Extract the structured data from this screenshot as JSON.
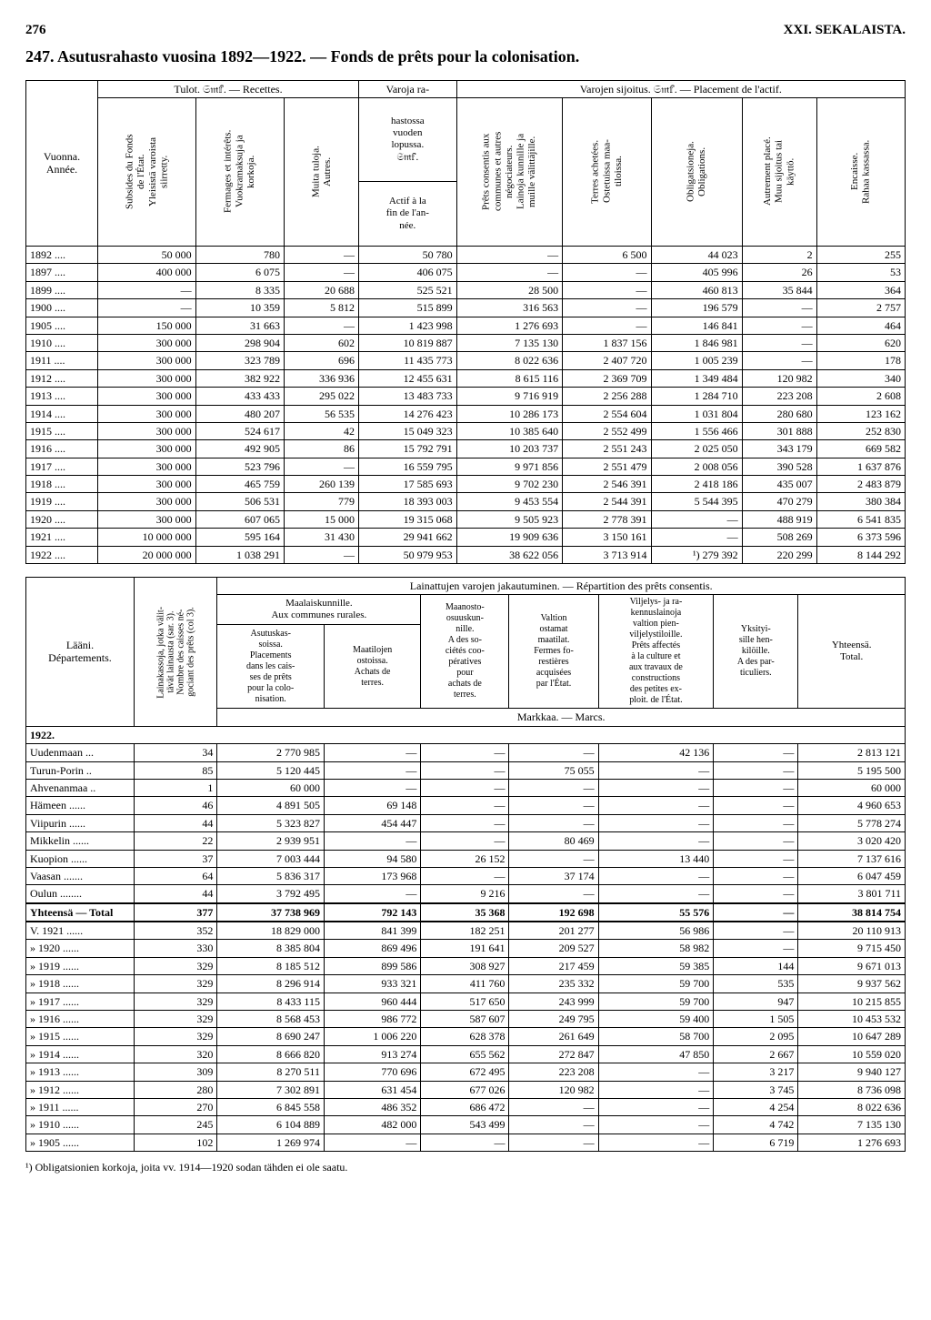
{
  "page_number": "276",
  "chapter": "XXI. SEKALAISTA.",
  "title_number": "247.",
  "title_main": "Asutusrahasto vuosina 1892—1922. — Fonds de prêts pour la colonisation.",
  "footnote_marker": "¹)",
  "footnote_text": "Obligatsionien korkoja, joita vv. 1914—1920 sodan tähden ei ole saatu.",
  "table1": {
    "head_group1": "Tulot. 𝔖𝔪𝕗. — Recettes.",
    "head_group2_a": "Varoja ra-",
    "head_group2_b": "hastossa\nvuoden\nlopussa.\n𝔖𝔪𝕗.",
    "head_group2_c": "Actif à la\nfin de l'an-\nnée.",
    "head_group3": "Varojen sijoitus. 𝔖𝔪𝕗. — Placement de l'actif.",
    "col_year": "Vuonna.\nAnnée.",
    "cols": [
      "Subsides du Fonds\nde l'État.\nYleisistä varoista\nsiirretty.",
      "Fermages et intérêts.\nVuokramaksuja ja\nkorkoja.",
      "Muita tuloja.\nAutres.",
      "—",
      "Prêts consentis aux\ncommunes et autres\nnégociateurs.\nLainoja kunnille ja\nmuille välittäjille.",
      "Terres achetées.\nOstetuissa maa-\ntiloissa.",
      "Obligatsioneja.\nObligations.",
      "Autrement placé.\nMuu sijoitus tai\nkäyttö.",
      "Encaisse.\nRahaa kassassa."
    ],
    "rows": [
      [
        "1892 ....",
        "50 000",
        "780",
        "—",
        "50 780",
        "—",
        "6 500",
        "44 023",
        "2",
        "255"
      ],
      [
        "1897 ....",
        "400 000",
        "6 075",
        "—",
        "406 075",
        "—",
        "—",
        "405 996",
        "26",
        "53"
      ],
      [
        "1899 ....",
        "—",
        "8 335",
        "20 688",
        "525 521",
        "28 500",
        "—",
        "460 813",
        "35 844",
        "364"
      ],
      [
        "1900 ....",
        "—",
        "10 359",
        "5 812",
        "515 899",
        "316 563",
        "—",
        "196 579",
        "—",
        "2 757"
      ],
      [
        "1905 ....",
        "150 000",
        "31 663",
        "—",
        "1 423 998",
        "1 276 693",
        "—",
        "146 841",
        "—",
        "464"
      ],
      [
        "1910 ....",
        "300 000",
        "298 904",
        "602",
        "10 819 887",
        "7 135 130",
        "1 837 156",
        "1 846 981",
        "—",
        "620"
      ],
      [
        "1911 ....",
        "300 000",
        "323 789",
        "696",
        "11 435 773",
        "8 022 636",
        "2 407 720",
        "1 005 239",
        "—",
        "178"
      ],
      [
        "1912 ....",
        "300 000",
        "382 922",
        "336 936",
        "12 455 631",
        "8 615 116",
        "2 369 709",
        "1 349 484",
        "120 982",
        "340"
      ],
      [
        "1913 ....",
        "300 000",
        "433 433",
        "295 022",
        "13 483 733",
        "9 716 919",
        "2 256 288",
        "1 284 710",
        "223 208",
        "2 608"
      ],
      [
        "1914 ....",
        "300 000",
        "480 207",
        "56 535",
        "14 276 423",
        "10 286 173",
        "2 554 604",
        "1 031 804",
        "280 680",
        "123 162"
      ],
      [
        "1915 ....",
        "300 000",
        "524 617",
        "42",
        "15 049 323",
        "10 385 640",
        "2 552 499",
        "1 556 466",
        "301 888",
        "252 830"
      ],
      [
        "1916 ....",
        "300 000",
        "492 905",
        "86",
        "15 792 791",
        "10 203 737",
        "2 551 243",
        "2 025 050",
        "343 179",
        "669 582"
      ],
      [
        "1917 ....",
        "300 000",
        "523 796",
        "—",
        "16 559 795",
        "9 971 856",
        "2 551 479",
        "2 008 056",
        "390 528",
        "1 637 876"
      ],
      [
        "1918 ....",
        "300 000",
        "465 759",
        "260 139",
        "17 585 693",
        "9 702 230",
        "2 546 391",
        "2 418 186",
        "435 007",
        "2 483 879"
      ],
      [
        "1919 ....",
        "300 000",
        "506 531",
        "779",
        "18 393 003",
        "9 453 554",
        "2 544 391",
        "5 544 395",
        "470 279",
        "380 384"
      ],
      [
        "1920 ....",
        "300 000",
        "607 065",
        "15 000",
        "19 315 068",
        "9 505 923",
        "2 778 391",
        "—",
        "488 919",
        "6 541 835"
      ],
      [
        "1921 ....",
        "10 000 000",
        "595 164",
        "31 430",
        "29 941 662",
        "19 909 636",
        "3 150 161",
        "—",
        "508 269",
        "6 373 596"
      ],
      [
        "1922 ....",
        "20 000 000",
        "1 038 291",
        "—",
        "50 979 953",
        "38 622 056",
        "3 713 914",
        "¹) 279 392",
        "220 299",
        "8 144 292"
      ]
    ]
  },
  "table2": {
    "strip_title": "Lainattujen varojen jakautuminen. — Répartition des prêts consentis.",
    "col_laani": "Lääni.\nDépartements.",
    "col_count_v": "Lainakassoja, jotka välit-\ntävät lainausta (sar. 3).\nNombre des caisses né-\ngociant des prêts (col 3).",
    "group_rural": "Maalaiskunnille.\nAux communes rurales.",
    "sub_asutus": "Asutuskas-\nsoissa.\nPlacements\ndans les cais-\nses de prêts\npour la colo-\nnisation.",
    "sub_maatilo": "Maatilojen\nostoissa.\nAchats de\nterres.",
    "col_maanosto": "Maanosto-\nosuuskun-\nnille.\nA des so-\nciétés coo-\npératives\npour\nachats de\nterres.",
    "col_valtion": "Valtion\nostamat\nmaatilat.\nFermes fo-\nrestières\nacquisées\npar l'État.",
    "col_viljelys": "Viljelys- ja ra-\nkennuslainoja\nvaltion pien-\nviljelystiloille.\nPrêts affectés\nà la culture et\naux travaux de\nconstructions\ndes petites ex-\nploit. de l'État.",
    "col_yksit": "Yksityi-\nsille hen-\nkilöille.\nA des par-\nticuliers.",
    "col_total": "Yhteensä.\nTotal.",
    "markkaa": "Markkaa. — Marcs.",
    "year_head": "1922.",
    "laani_rows": [
      [
        "Uudenmaan ...",
        "34",
        "2 770 985",
        "—",
        "—",
        "—",
        "42 136",
        "—",
        "2 813 121"
      ],
      [
        "Turun-Porin ..",
        "85",
        "5 120 445",
        "—",
        "—",
        "75 055",
        "—",
        "—",
        "5 195 500"
      ],
      [
        "Ahvenanmaa ..",
        "1",
        "60 000",
        "—",
        "—",
        "—",
        "—",
        "—",
        "60 000"
      ],
      [
        "Hämeen ......",
        "46",
        "4 891 505",
        "69 148",
        "—",
        "—",
        "—",
        "—",
        "4 960 653"
      ],
      [
        "Viipurin ......",
        "44",
        "5 323 827",
        "454 447",
        "—",
        "—",
        "—",
        "—",
        "5 778 274"
      ],
      [
        "Mikkelin ......",
        "22",
        "2 939 951",
        "—",
        "—",
        "80 469",
        "—",
        "—",
        "3 020 420"
      ],
      [
        "Kuopion ......",
        "37",
        "7 003 444",
        "94 580",
        "26 152",
        "—",
        "13 440",
        "—",
        "7 137 616"
      ],
      [
        "Vaasan .......",
        "64",
        "5 836 317",
        "173 968",
        "—",
        "37 174",
        "—",
        "—",
        "6 047 459"
      ],
      [
        "Oulun ........",
        "44",
        "3 792 495",
        "—",
        "9 216",
        "—",
        "—",
        "—",
        "3 801 711"
      ]
    ],
    "total_row_label": "Yhteensä — Total",
    "total_row": [
      "377",
      "37 738 969",
      "792 143",
      "35 368",
      "192 698",
      "55 576",
      "—",
      "38 814 754"
    ],
    "year_rows": [
      [
        "V.  1921 ......",
        "352",
        "18 829 000",
        "841 399",
        "182 251",
        "201 277",
        "56 986",
        "—",
        "20 110 913"
      ],
      [
        "»   1920 ......",
        "330",
        "8 385 804",
        "869 496",
        "191 641",
        "209 527",
        "58 982",
        "—",
        "9 715 450"
      ],
      [
        "»   1919 ......",
        "329",
        "8 185 512",
        "899 586",
        "308 927",
        "217 459",
        "59 385",
        "144",
        "9 671 013"
      ],
      [
        "»   1918 ......",
        "329",
        "8 296 914",
        "933 321",
        "411 760",
        "235 332",
        "59 700",
        "535",
        "9 937 562"
      ],
      [
        "»   1917 ......",
        "329",
        "8 433 115",
        "960 444",
        "517 650",
        "243 999",
        "59 700",
        "947",
        "10 215 855"
      ],
      [
        "»   1916 ......",
        "329",
        "8 568 453",
        "986 772",
        "587 607",
        "249 795",
        "59 400",
        "1 505",
        "10 453 532"
      ],
      [
        "»   1915 ......",
        "329",
        "8 690 247",
        "1 006 220",
        "628 378",
        "261 649",
        "58 700",
        "2 095",
        "10 647 289"
      ],
      [
        "»   1914 ......",
        "320",
        "8 666 820",
        "913 274",
        "655 562",
        "272 847",
        "47 850",
        "2 667",
        "10 559 020"
      ],
      [
        "»   1913 ......",
        "309",
        "8 270 511",
        "770 696",
        "672 495",
        "223 208",
        "—",
        "3 217",
        "9 940 127"
      ],
      [
        "»   1912 ......",
        "280",
        "7 302 891",
        "631 454",
        "677 026",
        "120 982",
        "—",
        "3 745",
        "8 736 098"
      ],
      [
        "»   1911 ......",
        "270",
        "6 845 558",
        "486 352",
        "686 472",
        "—",
        "—",
        "4 254",
        "8 022 636"
      ],
      [
        "»   1910 ......",
        "245",
        "6 104 889",
        "482 000",
        "543 499",
        "—",
        "—",
        "4 742",
        "7 135 130"
      ],
      [
        "»   1905 ......",
        "102",
        "1 269 974",
        "—",
        "—",
        "—",
        "—",
        "6 719",
        "1 276 693"
      ]
    ]
  }
}
